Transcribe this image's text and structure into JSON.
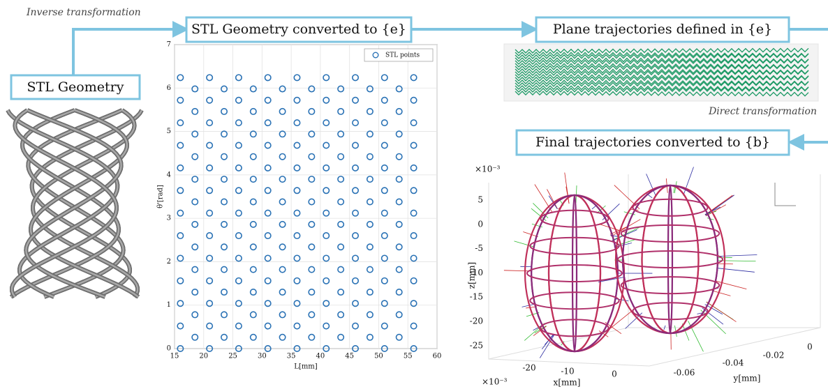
{
  "annotations": {
    "inverse": "Inverse transformation",
    "direct": "Direct transformation"
  },
  "boxes": {
    "stl": "STL Geometry",
    "converted_e": "STL Geometry converted to {e}",
    "plane": "Plane trajectories defined in {e}",
    "final": "Final trajectories converted to {b}"
  },
  "chart_data": {
    "type": "scatter",
    "xlabel": "L[mm]",
    "ylabel": "θ'[rad]",
    "xlim": [
      15,
      60
    ],
    "xticks": [
      15,
      20,
      25,
      30,
      35,
      40,
      45,
      50,
      55,
      60
    ],
    "ylim": [
      0,
      7
    ],
    "yticks": [
      0,
      1,
      2,
      3,
      4,
      5,
      6,
      7
    ],
    "grid": true,
    "legend": "upper right",
    "series": [
      {
        "name": "STL points",
        "color": "#2a72b5",
        "x": [
          16,
          16,
          16,
          16,
          16,
          16,
          16,
          16,
          16,
          16,
          16,
          16,
          16,
          18.5,
          18.5,
          18.5,
          18.5,
          18.5,
          18.5,
          18.5,
          18.5,
          18.5,
          18.5,
          18.5,
          18.5,
          21,
          21,
          21,
          21,
          21,
          21,
          21,
          21,
          21,
          21,
          21,
          21,
          21,
          23.5,
          23.5,
          23.5,
          23.5,
          23.5,
          23.5,
          23.5,
          23.5,
          23.5,
          23.5,
          23.5,
          23.5,
          26,
          26,
          26,
          26,
          26,
          26,
          26,
          26,
          26,
          26,
          26,
          26,
          26,
          28.5,
          28.5,
          28.5,
          28.5,
          28.5,
          28.5,
          28.5,
          28.5,
          28.5,
          28.5,
          28.5,
          28.5,
          31,
          31,
          31,
          31,
          31,
          31,
          31,
          31,
          31,
          31,
          31,
          31,
          31,
          33.5,
          33.5,
          33.5,
          33.5,
          33.5,
          33.5,
          33.5,
          33.5,
          33.5,
          33.5,
          33.5,
          33.5,
          36,
          36,
          36,
          36,
          36,
          36,
          36,
          36,
          36,
          36,
          36,
          36,
          36,
          38.5,
          38.5,
          38.5,
          38.5,
          38.5,
          38.5,
          38.5,
          38.5,
          38.5,
          38.5,
          38.5,
          38.5,
          41,
          41,
          41,
          41,
          41,
          41,
          41,
          41,
          41,
          41,
          41,
          41,
          41,
          43.5,
          43.5,
          43.5,
          43.5,
          43.5,
          43.5,
          43.5,
          43.5,
          43.5,
          43.5,
          43.5,
          43.5,
          46,
          46,
          46,
          46,
          46,
          46,
          46,
          46,
          46,
          46,
          46,
          46,
          46,
          48.5,
          48.5,
          48.5,
          48.5,
          48.5,
          48.5,
          48.5,
          48.5,
          48.5,
          48.5,
          48.5,
          48.5,
          51,
          51,
          51,
          51,
          51,
          51,
          51,
          51,
          51,
          51,
          51,
          51,
          51,
          53.5,
          53.5,
          53.5,
          53.5,
          53.5,
          53.5,
          53.5,
          53.5,
          53.5,
          53.5,
          53.5,
          53.5,
          56,
          56,
          56,
          56,
          56,
          56,
          56,
          56,
          56,
          56,
          56,
          56,
          56
        ],
        "values": [
          0,
          0.52,
          1.04,
          1.56,
          2.08,
          2.6,
          3.12,
          3.64,
          4.16,
          4.68,
          5.2,
          5.72,
          6.24,
          0.26,
          0.78,
          1.3,
          1.82,
          2.34,
          2.86,
          3.38,
          3.9,
          4.42,
          4.94,
          5.46,
          5.98,
          0,
          0.52,
          1.04,
          1.56,
          2.08,
          2.6,
          3.12,
          3.64,
          4.16,
          4.68,
          5.2,
          5.72,
          6.24,
          0.26,
          0.78,
          1.3,
          1.82,
          2.34,
          2.86,
          3.38,
          3.9,
          4.42,
          4.94,
          5.46,
          5.98,
          0,
          0.52,
          1.04,
          1.56,
          2.08,
          2.6,
          3.12,
          3.64,
          4.16,
          4.68,
          5.2,
          5.72,
          6.24,
          0.26,
          0.78,
          1.3,
          1.82,
          2.34,
          2.86,
          3.38,
          3.9,
          4.42,
          4.94,
          5.46,
          5.98,
          0,
          0.52,
          1.04,
          1.56,
          2.08,
          2.6,
          3.12,
          3.64,
          4.16,
          4.68,
          5.2,
          5.72,
          6.24,
          0.26,
          0.78,
          1.3,
          1.82,
          2.34,
          2.86,
          3.38,
          3.9,
          4.42,
          4.94,
          5.46,
          5.98,
          0,
          0.52,
          1.04,
          1.56,
          2.08,
          2.6,
          3.12,
          3.64,
          4.16,
          4.68,
          5.2,
          5.72,
          6.24,
          0.26,
          0.78,
          1.3,
          1.82,
          2.34,
          2.86,
          3.38,
          3.9,
          4.42,
          4.94,
          5.46,
          5.98,
          0,
          0.52,
          1.04,
          1.56,
          2.08,
          2.6,
          3.12,
          3.64,
          4.16,
          4.68,
          5.2,
          5.72,
          6.24,
          0.26,
          0.78,
          1.3,
          1.82,
          2.34,
          2.86,
          3.38,
          3.9,
          4.42,
          4.94,
          5.46,
          5.98,
          0,
          0.52,
          1.04,
          1.56,
          2.08,
          2.6,
          3.12,
          3.64,
          4.16,
          4.68,
          5.2,
          5.72,
          6.24,
          0.26,
          0.78,
          1.3,
          1.82,
          2.34,
          2.86,
          3.38,
          3.9,
          4.42,
          4.94,
          5.46,
          5.98,
          0,
          0.52,
          1.04,
          1.56,
          2.08,
          2.6,
          3.12,
          3.64,
          4.16,
          4.68,
          5.2,
          5.72,
          6.24,
          0.26,
          0.78,
          1.3,
          1.82,
          2.34,
          2.86,
          3.38,
          3.9,
          4.42,
          4.94,
          5.46,
          5.98,
          0,
          0.52,
          1.04,
          1.56,
          2.08,
          2.6,
          3.12,
          3.64,
          4.16,
          4.68,
          5.2,
          5.72,
          6.24
        ]
      }
    ]
  },
  "plot3d": {
    "z_multiplier": "×10⁻³",
    "zticks": [
      5,
      0,
      -5,
      -10,
      -15,
      -20,
      -25
    ],
    "zlabel": "z[mm]",
    "x_multiplier": "×10⁻³",
    "xticks": [
      -20,
      -10,
      0
    ],
    "xlabel": "x[mm]",
    "yticks": [
      -0.06,
      -0.04,
      -0.02,
      0
    ],
    "ylabel": "y[mm]"
  }
}
